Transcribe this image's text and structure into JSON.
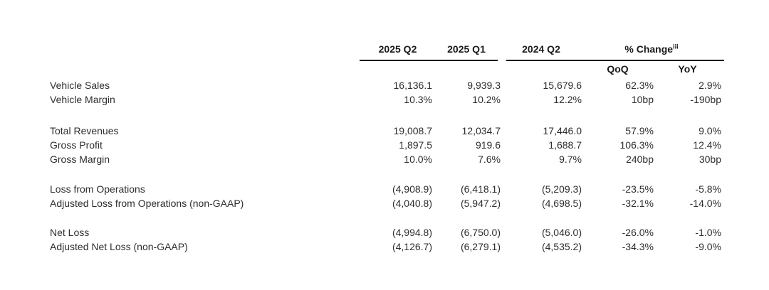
{
  "page": {
    "background": "#ffffff",
    "text_color": "#2e2e2e",
    "rule_color": "#000000"
  },
  "table": {
    "header": {
      "col_2025_q2": "2025 Q2",
      "col_2025_q1": "2025 Q1",
      "col_2024_q2": "2024 Q2",
      "pct_change_label": "% Change",
      "pct_change_footnote": "iii",
      "sub_qoq": "QoQ",
      "sub_yoy": "YoY"
    },
    "sections": [
      {
        "rows": [
          {
            "label": "Vehicle Sales",
            "q2_2025": "16,136.1",
            "q1_2025": "9,939.3",
            "q2_2024": "15,679.6",
            "qoq": "62.3%",
            "yoy": "2.9%"
          },
          {
            "label": "Vehicle Margin",
            "q2_2025": "10.3%",
            "q1_2025": "10.2%",
            "q2_2024": "12.2%",
            "qoq": "10bp",
            "yoy": "-190bp"
          }
        ]
      },
      {
        "rows": [
          {
            "label": "Total Revenues",
            "q2_2025": "19,008.7",
            "q1_2025": "12,034.7",
            "q2_2024": "17,446.0",
            "qoq": "57.9%",
            "yoy": "9.0%"
          },
          {
            "label": "Gross Profit",
            "q2_2025": "1,897.5",
            "q1_2025": "919.6",
            "q2_2024": "1,688.7",
            "qoq": "106.3%",
            "yoy": "12.4%"
          },
          {
            "label": "Gross Margin",
            "q2_2025": "10.0%",
            "q1_2025": "7.6%",
            "q2_2024": "9.7%",
            "qoq": "240bp",
            "yoy": "30bp"
          }
        ]
      },
      {
        "rows": [
          {
            "label": "Loss from Operations",
            "q2_2025": "(4,908.9)",
            "q1_2025": "(6,418.1)",
            "q2_2024": "(5,209.3)",
            "qoq": "-23.5%",
            "yoy": "-5.8%"
          },
          {
            "label": "Adjusted Loss from Operations (non-GAAP)",
            "q2_2025": "(4,040.8)",
            "q1_2025": "(5,947.2)",
            "q2_2024": "(4,698.5)",
            "qoq": "-32.1%",
            "yoy": "-14.0%"
          }
        ]
      },
      {
        "rows": [
          {
            "label": "Net Loss",
            "q2_2025": "(4,994.8)",
            "q1_2025": "(6,750.0)",
            "q2_2024": "(5,046.0)",
            "qoq": "-26.0%",
            "yoy": "-1.0%"
          },
          {
            "label": "Adjusted Net Loss (non-GAAP)",
            "q2_2025": "(4,126.7)",
            "q1_2025": "(6,279.1)",
            "q2_2024": "(4,535.2)",
            "qoq": "-34.3%",
            "yoy": "-9.0%"
          }
        ]
      }
    ]
  }
}
